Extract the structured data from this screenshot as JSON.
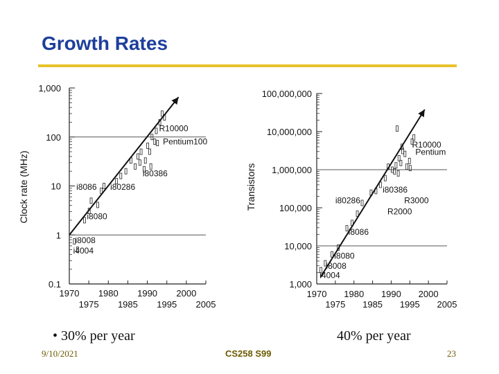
{
  "slide": {
    "title": "Growth Rates",
    "bullet_left": "• 30% per year",
    "bullet_right": "40% per year",
    "footer_date": "9/10/2021",
    "footer_course": "CS258 S99",
    "footer_page": "23"
  },
  "colors": {
    "title": "#1d3f9c",
    "rule": "#e8c32a",
    "footer": "#6b5a00",
    "ink": "#111111"
  },
  "chart_data": [
    {
      "type": "scatter",
      "title": "",
      "xlabel": "",
      "ylabel": "Clock rate (MHz)",
      "yscale": "log",
      "xlim": [
        1970,
        2005
      ],
      "ylim": [
        0.1,
        1000
      ],
      "xticks_upper": [
        "1970",
        "1980",
        "1990",
        "2000"
      ],
      "xticks_lower": [
        "1975",
        "1985",
        "1995",
        "2005"
      ],
      "yticks": [
        {
          "value": 0.1,
          "label": "0.1"
        },
        {
          "value": 1,
          "label": "1"
        },
        {
          "value": 10,
          "label": "10"
        },
        {
          "value": 100,
          "label": "100"
        },
        {
          "value": 1000,
          "label": "1,000"
        }
      ],
      "hlines": [
        1,
        100
      ],
      "trend": {
        "from": [
          1970,
          1
        ],
        "to": [
          1998,
          650
        ]
      },
      "annotations": [
        {
          "text": "R10000",
          "x": 1993,
          "y": 150
        },
        {
          "text": "Pentium100",
          "x": 1994,
          "y": 80
        },
        {
          "text": "i80386",
          "x": 1988.8,
          "y": 18
        },
        {
          "text": "i8086",
          "x": 1971.8,
          "y": 9.5
        },
        {
          "text": "i80286",
          "x": 1980.5,
          "y": 9.5
        },
        {
          "text": "i8080",
          "x": 1974.5,
          "y": 2.4
        },
        {
          "text": "i8008",
          "x": 1971.5,
          "y": 0.78
        },
        {
          "text": "i4004",
          "x": 1971,
          "y": 0.48
        }
      ],
      "points": [
        [
          1971.3,
          0.74
        ],
        [
          1972.1,
          0.5
        ],
        [
          1973.9,
          2.0
        ],
        [
          1975.1,
          3.1
        ],
        [
          1975.6,
          5.0
        ],
        [
          1977.3,
          4.1
        ],
        [
          1978.2,
          8.0
        ],
        [
          1978.9,
          10.0
        ],
        [
          1982.1,
          12.5
        ],
        [
          1983.2,
          16
        ],
        [
          1984.5,
          20
        ],
        [
          1985.8,
          33
        ],
        [
          1986.9,
          25
        ],
        [
          1987.6,
          40
        ],
        [
          1988.4,
          50
        ],
        [
          1989.5,
          33
        ],
        [
          1990.1,
          66
        ],
        [
          1990.6,
          50
        ],
        [
          1991.2,
          100
        ],
        [
          1991.9,
          80
        ],
        [
          1992.3,
          133
        ],
        [
          1993.2,
          200
        ],
        [
          1993.8,
          300
        ],
        [
          1994.4,
          250
        ],
        [
          1989.2,
          22
        ],
        [
          1988.1,
          30
        ],
        [
          1990.9,
          25
        ],
        [
          1992.6,
          75
        ]
      ]
    },
    {
      "type": "scatter",
      "title": "",
      "xlabel": "",
      "ylabel": "Transistors",
      "yscale": "log",
      "xlim": [
        1970,
        2005
      ],
      "ylim": [
        1000,
        100000000
      ],
      "xticks_upper": [
        "1970",
        "1980",
        "1990",
        "2000"
      ],
      "xticks_lower": [
        "1975",
        "1985",
        "1995",
        "2005"
      ],
      "yticks": [
        {
          "value": 1000,
          "label": "1,000"
        },
        {
          "value": 10000,
          "label": "10,000"
        },
        {
          "value": 100000,
          "label": "100,000"
        },
        {
          "value": 1000000,
          "label": "1,000,000"
        },
        {
          "value": 10000000,
          "label": "10,000,000"
        },
        {
          "value": 100000000,
          "label": "100,000,000"
        }
      ],
      "hlines": [
        10000,
        1000000
      ],
      "trend": {
        "from": [
          1971,
          1500
        ],
        "to": [
          1999,
          38000000
        ]
      },
      "annotations": [
        {
          "text": "R10000",
          "x": 1995.6,
          "y": 4500000
        },
        {
          "text": "Pentium",
          "x": 1996.5,
          "y": 2900000
        },
        {
          "text": "i80386",
          "x": 1987.7,
          "y": 300000
        },
        {
          "text": "i80286",
          "x": 1975,
          "y": 155000
        },
        {
          "text": "R3000",
          "x": 1993.5,
          "y": 155000
        },
        {
          "text": "R2000",
          "x": 1989,
          "y": 80000
        },
        {
          "text": "i8086",
          "x": 1978.5,
          "y": 23000
        },
        {
          "text": "i8080",
          "x": 1974.7,
          "y": 5500
        },
        {
          "text": "i8008",
          "x": 1972.5,
          "y": 3000
        },
        {
          "text": "i4004",
          "x": 1970.8,
          "y": 1700
        }
      ],
      "points": [
        [
          1971.1,
          2300
        ],
        [
          1972.3,
          3500
        ],
        [
          1974.1,
          6000
        ],
        [
          1975.8,
          9000
        ],
        [
          1978.1,
          29000
        ],
        [
          1979.5,
          40000
        ],
        [
          1980.9,
          70000
        ],
        [
          1982.2,
          134000
        ],
        [
          1984.6,
          250000
        ],
        [
          1985.9,
          275000
        ],
        [
          1987.1,
          400000
        ],
        [
          1988.4,
          600000
        ],
        [
          1989.2,
          1200000
        ],
        [
          1990.3,
          1000000
        ],
        [
          1990.9,
          900000
        ],
        [
          1991.3,
          1300000
        ],
        [
          1992.1,
          2000000
        ],
        [
          1992.6,
          1500000
        ],
        [
          1993.1,
          3100000
        ],
        [
          1993.7,
          2600000
        ],
        [
          1994.2,
          1200000
        ],
        [
          1994.9,
          1700000
        ],
        [
          1995.6,
          5500000
        ],
        [
          1996.1,
          7000000
        ],
        [
          1991.6,
          12000000
        ],
        [
          1992.9,
          4000000
        ],
        [
          1995.1,
          1100000
        ],
        [
          1991.9,
          800000
        ]
      ]
    }
  ]
}
